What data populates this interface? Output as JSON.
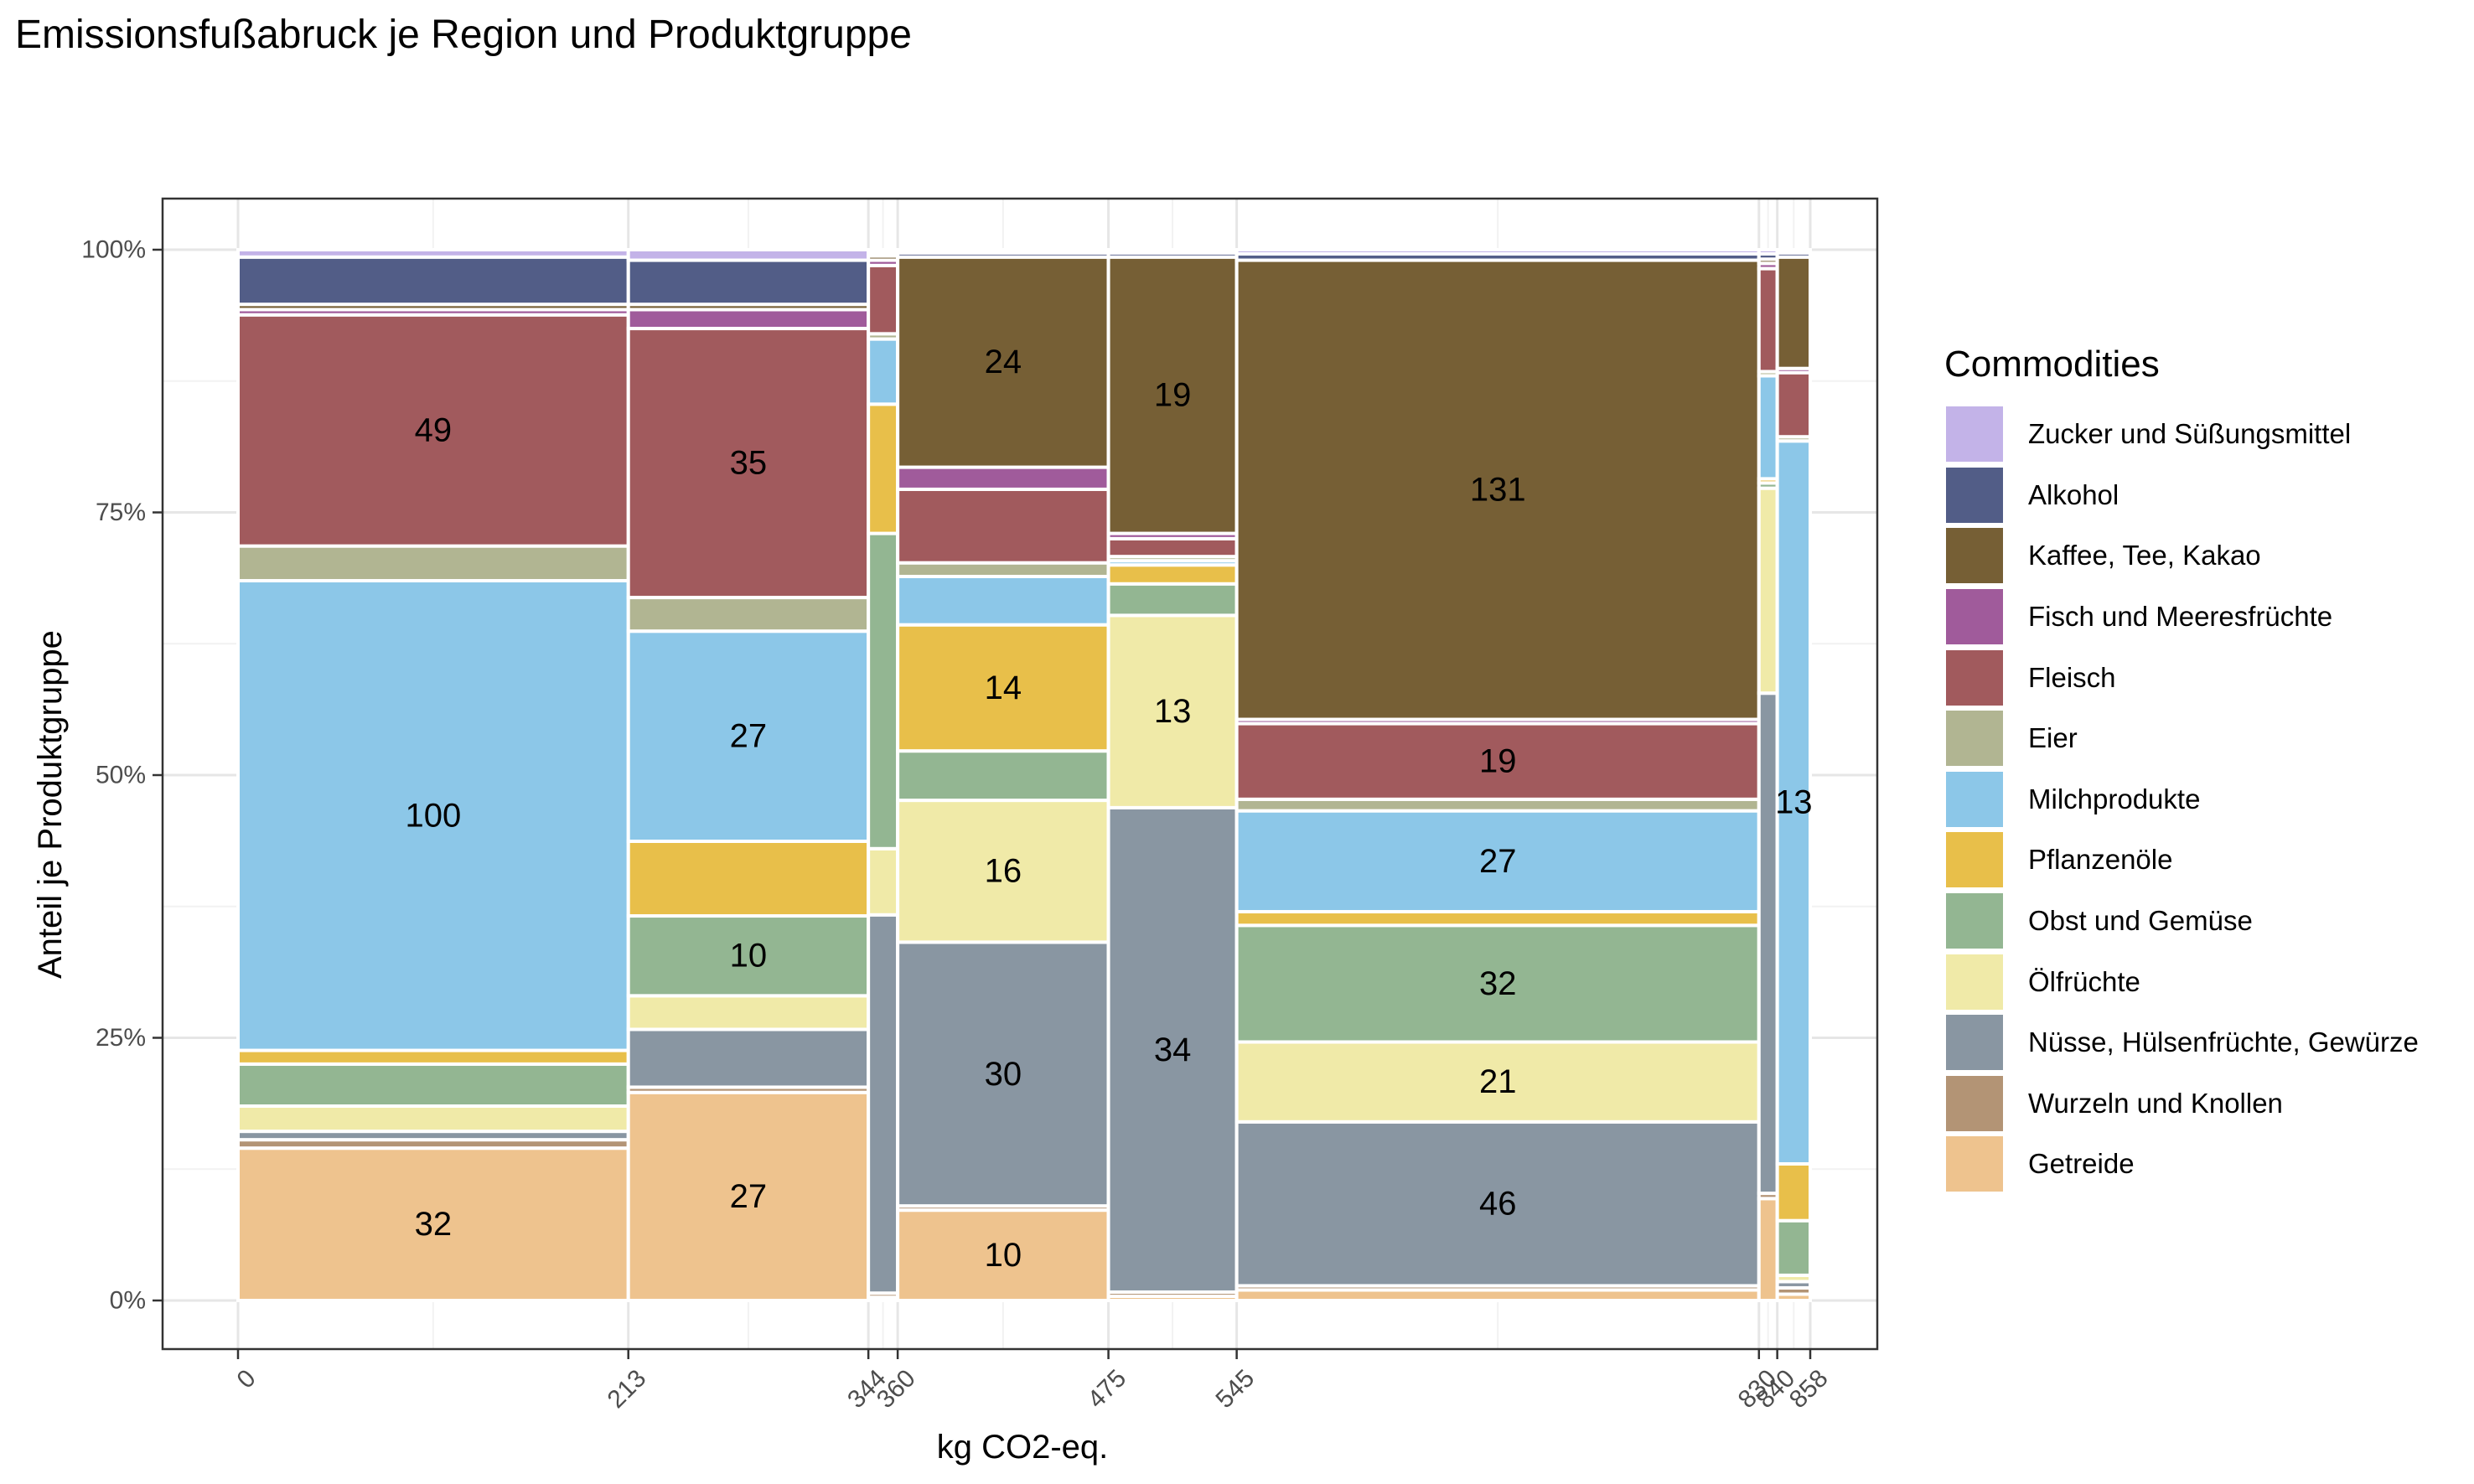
{
  "chart_data": {
    "type": "mosaic",
    "title": "Emissionsfußabruck je Region und Produktgruppe",
    "xlabel": "kg CO2-eq.",
    "ylabel": "Anteil je Produktgruppe",
    "legend_title": "Commodities",
    "legend_position": "right",
    "grid": true,
    "xlim": [
      0,
      858
    ],
    "ylim": [
      0,
      1
    ],
    "x_ticks": [
      0,
      213,
      344,
      360,
      475,
      545,
      830,
      840,
      858
    ],
    "y_ticks": [
      "0%",
      "25%",
      "50%",
      "75%",
      "100%"
    ],
    "categories": [
      {
        "name": "Zucker und Süßungsmittel",
        "color": "#C3B3E8"
      },
      {
        "name": "Alkohol",
        "color": "#525D87"
      },
      {
        "name": "Kaffee, Tee, Kakao",
        "color": "#765F35"
      },
      {
        "name": "Fisch und Meeresfrüchte",
        "color": "#A05B9B"
      },
      {
        "name": "Fleisch",
        "color": "#A15A5D"
      },
      {
        "name": "Eier",
        "color": "#B1B592"
      },
      {
        "name": "Milchprodukte",
        "color": "#8CC7E8"
      },
      {
        "name": "Pflanzenöle",
        "color": "#E8BF4A"
      },
      {
        "name": "Obst und Gemüse",
        "color": "#93B692"
      },
      {
        "name": "Ölfrüchte",
        "color": "#F0EAA8"
      },
      {
        "name": "Nüsse, Hülsenfrüchte, Gewürze",
        "color": "#8996A2"
      },
      {
        "name": "Wurzeln und Knollen",
        "color": "#B39475"
      },
      {
        "name": "Getreide",
        "color": "#EEC38E"
      }
    ],
    "columns": [
      {
        "x0": 0,
        "x1": 213,
        "segments": [
          {
            "c": "Getreide",
            "y0": 0,
            "y1": 0.145,
            "label": "32"
          },
          {
            "c": "Wurzeln und Knollen",
            "y0": 0.145,
            "y1": 0.153
          },
          {
            "c": "Nüsse, Hülsenfrüchte, Gewürze",
            "y0": 0.153,
            "y1": 0.161
          },
          {
            "c": "Ölfrüchte",
            "y0": 0.161,
            "y1": 0.185
          },
          {
            "c": "Obst und Gemüse",
            "y0": 0.185,
            "y1": 0.225
          },
          {
            "c": "Pflanzenöle",
            "y0": 0.225,
            "y1": 0.238
          },
          {
            "c": "Milchprodukte",
            "y0": 0.238,
            "y1": 0.685,
            "label": "100"
          },
          {
            "c": "Eier",
            "y0": 0.685,
            "y1": 0.718
          },
          {
            "c": "Fleisch",
            "y0": 0.718,
            "y1": 0.938,
            "label": "49"
          },
          {
            "c": "Fisch und Meeresfrüchte",
            "y0": 0.938,
            "y1": 0.943
          },
          {
            "c": "Kaffee, Tee, Kakao",
            "y0": 0.943,
            "y1": 0.948
          },
          {
            "c": "Alkohol",
            "y0": 0.948,
            "y1": 0.993
          },
          {
            "c": "Zucker und Süßungsmittel",
            "y0": 0.993,
            "y1": 1.0
          }
        ]
      },
      {
        "x0": 213,
        "x1": 344,
        "segments": [
          {
            "c": "Getreide",
            "y0": 0,
            "y1": 0.198,
            "label": "27"
          },
          {
            "c": "Wurzeln und Knollen",
            "y0": 0.198,
            "y1": 0.203
          },
          {
            "c": "Nüsse, Hülsenfrüchte, Gewürze",
            "y0": 0.203,
            "y1": 0.258
          },
          {
            "c": "Ölfrüchte",
            "y0": 0.258,
            "y1": 0.29
          },
          {
            "c": "Obst und Gemüse",
            "y0": 0.29,
            "y1": 0.366,
            "label": "10"
          },
          {
            "c": "Pflanzenöle",
            "y0": 0.366,
            "y1": 0.437
          },
          {
            "c": "Milchprodukte",
            "y0": 0.437,
            "y1": 0.637,
            "label": "27"
          },
          {
            "c": "Eier",
            "y0": 0.637,
            "y1": 0.669
          },
          {
            "c": "Fleisch",
            "y0": 0.669,
            "y1": 0.925,
            "label": "35"
          },
          {
            "c": "Fisch und Meeresfrüchte",
            "y0": 0.925,
            "y1": 0.943
          },
          {
            "c": "Kaffee, Tee, Kakao",
            "y0": 0.943,
            "y1": 0.948
          },
          {
            "c": "Alkohol",
            "y0": 0.948,
            "y1": 0.99
          },
          {
            "c": "Zucker und Süßungsmittel",
            "y0": 0.99,
            "y1": 1.0
          }
        ]
      },
      {
        "x0": 344,
        "x1": 360,
        "segments": [
          {
            "c": "Getreide",
            "y0": 0,
            "y1": 0.003
          },
          {
            "c": "Wurzeln und Knollen",
            "y0": 0.003,
            "y1": 0.007
          },
          {
            "c": "Nüsse, Hülsenfrüchte, Gewürze",
            "y0": 0.007,
            "y1": 0.367
          },
          {
            "c": "Ölfrüchte",
            "y0": 0.367,
            "y1": 0.43
          },
          {
            "c": "Obst und Gemüse",
            "y0": 0.43,
            "y1": 0.73
          },
          {
            "c": "Pflanzenöle",
            "y0": 0.73,
            "y1": 0.853
          },
          {
            "c": "Milchprodukte",
            "y0": 0.853,
            "y1": 0.915
          },
          {
            "c": "Eier",
            "y0": 0.915,
            "y1": 0.92
          },
          {
            "c": "Fleisch",
            "y0": 0.92,
            "y1": 0.985
          },
          {
            "c": "Fisch und Meeresfrüchte",
            "y0": 0.985,
            "y1": 0.99
          },
          {
            "c": "Kaffee, Tee, Kakao",
            "y0": 0.99,
            "y1": 0.994
          },
          {
            "c": "Alkohol",
            "y0": 0.994,
            "y1": 0.997
          },
          {
            "c": "Zucker und Süßungsmittel",
            "y0": 0.997,
            "y1": 1.0
          }
        ]
      },
      {
        "x0": 360,
        "x1": 475,
        "segments": [
          {
            "c": "Getreide",
            "y0": 0,
            "y1": 0.086,
            "label": "10"
          },
          {
            "c": "Wurzeln und Knollen",
            "y0": 0.086,
            "y1": 0.09
          },
          {
            "c": "Nüsse, Hülsenfrüchte, Gewürze",
            "y0": 0.09,
            "y1": 0.341,
            "label": "30"
          },
          {
            "c": "Ölfrüchte",
            "y0": 0.341,
            "y1": 0.476,
            "label": "16"
          },
          {
            "c": "Obst und Gemüse",
            "y0": 0.476,
            "y1": 0.523
          },
          {
            "c": "Pflanzenöle",
            "y0": 0.523,
            "y1": 0.643,
            "label": "14"
          },
          {
            "c": "Milchprodukte",
            "y0": 0.643,
            "y1": 0.689
          },
          {
            "c": "Eier",
            "y0": 0.689,
            "y1": 0.702
          },
          {
            "c": "Fleisch",
            "y0": 0.702,
            "y1": 0.772
          },
          {
            "c": "Fisch und Meeresfrüchte",
            "y0": 0.772,
            "y1": 0.793
          },
          {
            "c": "Kaffee, Tee, Kakao",
            "y0": 0.793,
            "y1": 0.993,
            "label": "24"
          },
          {
            "c": "Alkohol",
            "y0": 0.993,
            "y1": 0.997
          },
          {
            "c": "Zucker und Süßungsmittel",
            "y0": 0.997,
            "y1": 1.0
          }
        ]
      },
      {
        "x0": 475,
        "x1": 545,
        "segments": [
          {
            "c": "Getreide",
            "y0": 0,
            "y1": 0.004
          },
          {
            "c": "Wurzeln und Knollen",
            "y0": 0.004,
            "y1": 0.008
          },
          {
            "c": "Nüsse, Hülsenfrüchte, Gewürze",
            "y0": 0.008,
            "y1": 0.469,
            "label": "34"
          },
          {
            "c": "Ölfrüchte",
            "y0": 0.469,
            "y1": 0.652,
            "label": "13"
          },
          {
            "c": "Obst und Gemüse",
            "y0": 0.652,
            "y1": 0.682
          },
          {
            "c": "Pflanzenöle",
            "y0": 0.682,
            "y1": 0.7
          },
          {
            "c": "Milchprodukte",
            "y0": 0.7,
            "y1": 0.704
          },
          {
            "c": "Eier",
            "y0": 0.704,
            "y1": 0.708
          },
          {
            "c": "Fleisch",
            "y0": 0.708,
            "y1": 0.725
          },
          {
            "c": "Fisch und Meeresfrüchte",
            "y0": 0.725,
            "y1": 0.73
          },
          {
            "c": "Kaffee, Tee, Kakao",
            "y0": 0.73,
            "y1": 0.993,
            "label": "19"
          },
          {
            "c": "Alkohol",
            "y0": 0.993,
            "y1": 0.997
          },
          {
            "c": "Zucker und Süßungsmittel",
            "y0": 0.997,
            "y1": 1.0
          }
        ]
      },
      {
        "x0": 545,
        "x1": 830,
        "segments": [
          {
            "c": "Getreide",
            "y0": 0,
            "y1": 0.01
          },
          {
            "c": "Wurzeln und Knollen",
            "y0": 0.01,
            "y1": 0.014
          },
          {
            "c": "Nüsse, Hülsenfrüchte, Gewürze",
            "y0": 0.014,
            "y1": 0.17,
            "label": "46"
          },
          {
            "c": "Ölfrüchte",
            "y0": 0.17,
            "y1": 0.246,
            "label": "21"
          },
          {
            "c": "Obst und Gemüse",
            "y0": 0.246,
            "y1": 0.357,
            "label": "32"
          },
          {
            "c": "Pflanzenöle",
            "y0": 0.357,
            "y1": 0.37
          },
          {
            "c": "Milchprodukte",
            "y0": 0.37,
            "y1": 0.466,
            "label": "27"
          },
          {
            "c": "Eier",
            "y0": 0.466,
            "y1": 0.477
          },
          {
            "c": "Fleisch",
            "y0": 0.477,
            "y1": 0.549,
            "label": "19"
          },
          {
            "c": "Fisch und Meeresfrüchte",
            "y0": 0.549,
            "y1": 0.553
          },
          {
            "c": "Kaffee, Tee, Kakao",
            "y0": 0.553,
            "y1": 0.99,
            "label": "131"
          },
          {
            "c": "Alkohol",
            "y0": 0.99,
            "y1": 0.996
          },
          {
            "c": "Zucker und Süßungsmittel",
            "y0": 0.996,
            "y1": 1.0
          }
        ]
      },
      {
        "x0": 830,
        "x1": 840,
        "segments": [
          {
            "c": "Getreide",
            "y0": 0,
            "y1": 0.097
          },
          {
            "c": "Wurzeln und Knollen",
            "y0": 0.097,
            "y1": 0.102
          },
          {
            "c": "Nüsse, Hülsenfrüchte, Gewürze",
            "y0": 0.102,
            "y1": 0.578
          },
          {
            "c": "Ölfrüchte",
            "y0": 0.578,
            "y1": 0.773
          },
          {
            "c": "Obst und Gemüse",
            "y0": 0.773,
            "y1": 0.778
          },
          {
            "c": "Pflanzenöle",
            "y0": 0.778,
            "y1": 0.782
          },
          {
            "c": "Milchprodukte",
            "y0": 0.782,
            "y1": 0.88
          },
          {
            "c": "Eier",
            "y0": 0.88,
            "y1": 0.884
          },
          {
            "c": "Fleisch",
            "y0": 0.884,
            "y1": 0.982
          },
          {
            "c": "Fisch und Meeresfrüchte",
            "y0": 0.982,
            "y1": 0.987
          },
          {
            "c": "Kaffee, Tee, Kakao",
            "y0": 0.987,
            "y1": 0.991
          },
          {
            "c": "Alkohol",
            "y0": 0.991,
            "y1": 0.996
          },
          {
            "c": "Zucker und Süßungsmittel",
            "y0": 0.996,
            "y1": 1.0
          }
        ]
      },
      {
        "x0": 840,
        "x1": 858,
        "segments": [
          {
            "c": "Getreide",
            "y0": 0,
            "y1": 0.006
          },
          {
            "c": "Wurzeln und Knollen",
            "y0": 0.006,
            "y1": 0.012
          },
          {
            "c": "Nüsse, Hülsenfrüchte, Gewürze",
            "y0": 0.012,
            "y1": 0.018
          },
          {
            "c": "Ölfrüchte",
            "y0": 0.018,
            "y1": 0.024
          },
          {
            "c": "Obst und Gemüse",
            "y0": 0.024,
            "y1": 0.076
          },
          {
            "c": "Pflanzenöle",
            "y0": 0.076,
            "y1": 0.13
          },
          {
            "c": "Milchprodukte",
            "y0": 0.13,
            "y1": 0.818,
            "label": "13"
          },
          {
            "c": "Eier",
            "y0": 0.818,
            "y1": 0.822
          },
          {
            "c": "Fleisch",
            "y0": 0.822,
            "y1": 0.883
          },
          {
            "c": "Fisch und Meeresfrüchte",
            "y0": 0.883,
            "y1": 0.887
          },
          {
            "c": "Kaffee, Tee, Kakao",
            "y0": 0.887,
            "y1": 0.993
          },
          {
            "c": "Alkohol",
            "y0": 0.993,
            "y1": 0.997
          },
          {
            "c": "Zucker und Süßungsmittel",
            "y0": 0.997,
            "y1": 1.0
          }
        ]
      }
    ]
  }
}
